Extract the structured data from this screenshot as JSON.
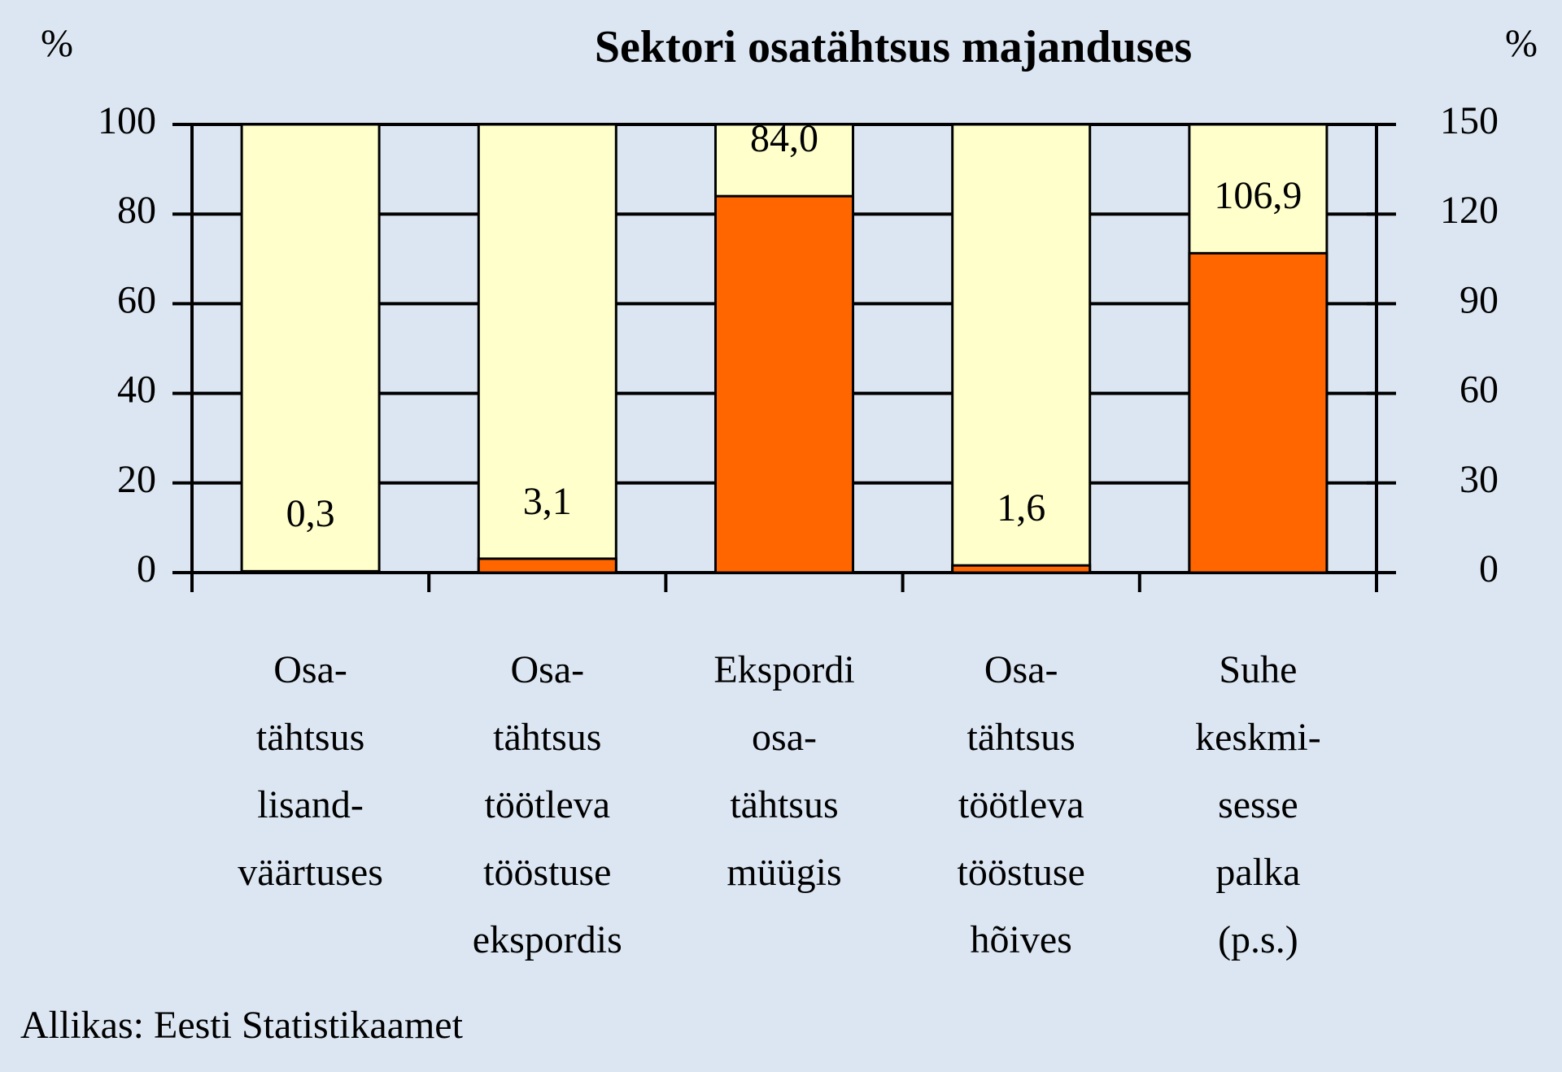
{
  "chart_data": {
    "type": "bar",
    "title": "Sektori osatähtsus majanduses",
    "y_label": "%",
    "y2_label": "%",
    "categories": [
      "Osa-\ntähtsus\nlisand-\nväärtuses",
      "Osa-\ntähtsus\ntöötleva\ntööstuse\nekspordis",
      "Ekspordi\nosa-\ntähtsus\nmüügis",
      "Osa-\ntähtsus\ntöötleva\ntööstuse\nhõives",
      "Suhe\nkeskmi-\nsesse\npalka\n(p.s.)"
    ],
    "series": [
      {
        "color": "#ff6600",
        "values": [
          0.3,
          3.1,
          84.0,
          1.6,
          null
        ],
        "value_labels": [
          "0,3",
          "3,1",
          "84,0",
          "1,6",
          null
        ]
      },
      {
        "color": "#ff6600",
        "axis": "y2",
        "values": [
          null,
          null,
          null,
          null,
          106.9
        ],
        "value_labels": [
          null,
          null,
          null,
          null,
          "106,9"
        ]
      }
    ],
    "stacked": true,
    "ylim": [
      0,
      100
    ],
    "yticks": [
      0,
      20,
      40,
      60,
      80,
      100
    ],
    "y2lim": [
      0,
      150
    ],
    "y2ticks": [
      0,
      30,
      60,
      90,
      120,
      150
    ],
    "grid": true,
    "source": "Allikas: Eesti Statistikaamet"
  }
}
